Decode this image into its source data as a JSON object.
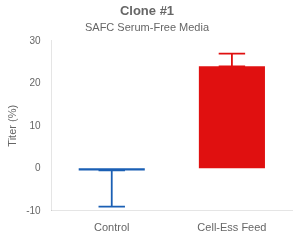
{
  "chart_data": {
    "type": "bar",
    "title": "Clone #1",
    "subtitle": "SAFC Serum-Free Media",
    "categories": [
      "Control",
      "Cell-Ess Feed"
    ],
    "values": [
      -0.5,
      24.0
    ],
    "colors": [
      "#1a5fb4",
      "#e01010"
    ],
    "errors_minus": [
      8.5,
      0.0
    ],
    "errors_plus": [
      0.0,
      3.0
    ],
    "ylabel": "Titer (%)",
    "ylim": [
      -10,
      30
    ],
    "yticks": [
      -10,
      0,
      10,
      20,
      30
    ],
    "grid": false
  }
}
